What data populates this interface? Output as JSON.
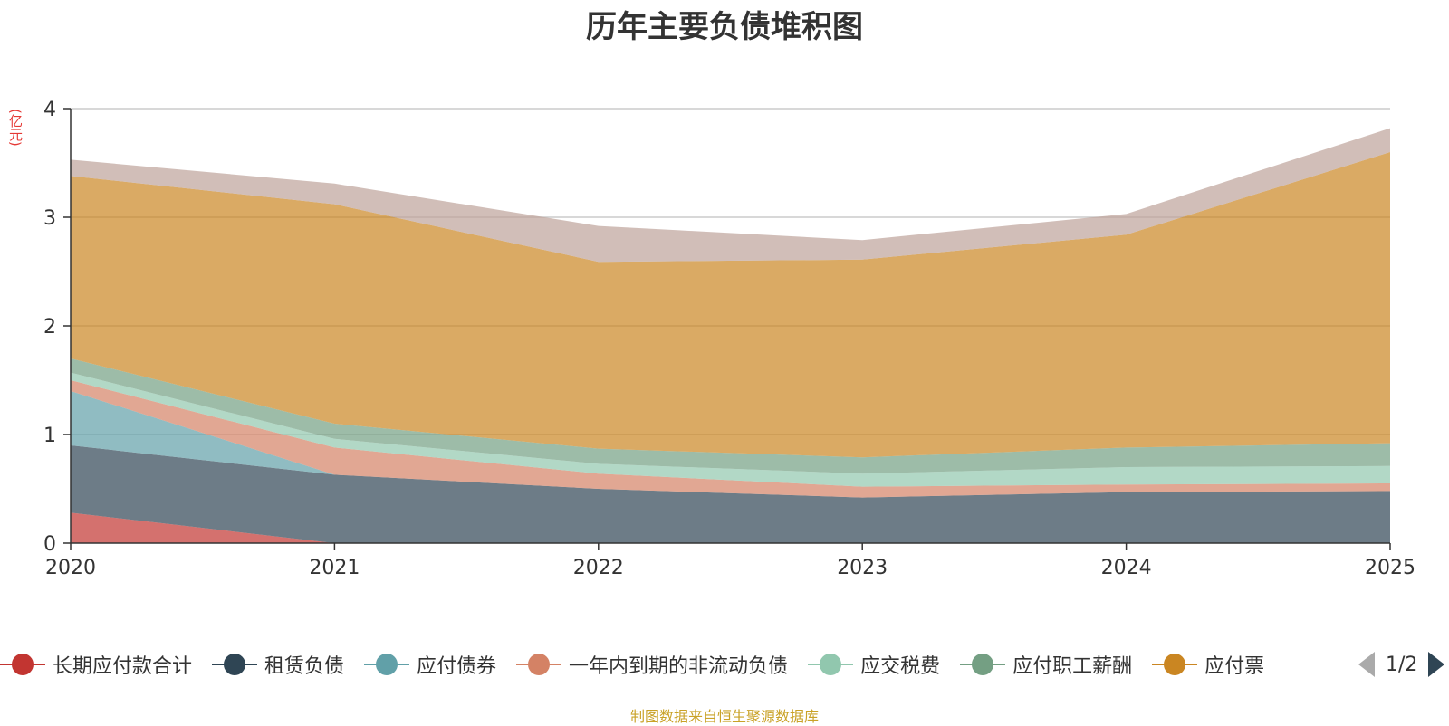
{
  "title": "历年主要负债堆积图",
  "unit_label": "(亿元)",
  "footer": "制图数据来自恒生聚源数据库",
  "legend_page": "1/2",
  "chart_data": {
    "type": "area",
    "stacked": true,
    "title": "历年主要负债堆积图",
    "ylabel": "(亿元)",
    "x": [
      "2020",
      "2021",
      "2022",
      "2023",
      "2024",
      "2025"
    ],
    "ylim": [
      0,
      4
    ],
    "yticks": [
      0,
      1,
      2,
      3,
      4
    ],
    "grid": true,
    "legend_position": "bottom",
    "series": [
      {
        "name": "长期应付款合计",
        "color": "#c23531",
        "values": [
          0.28,
          0.0,
          0.0,
          0.0,
          0.0,
          0.0
        ]
      },
      {
        "name": "租赁负债",
        "color": "#2f4554",
        "values": [
          0.62,
          0.63,
          0.5,
          0.42,
          0.47,
          0.48
        ]
      },
      {
        "name": "应付债券",
        "color": "#61a0a8",
        "values": [
          0.5,
          0.0,
          0.0,
          0.0,
          0.0,
          0.0
        ]
      },
      {
        "name": "一年内到期的非流动负债",
        "color": "#d48265",
        "values": [
          0.1,
          0.25,
          0.14,
          0.1,
          0.07,
          0.07
        ]
      },
      {
        "name": "应交税费",
        "color": "#91c7ae",
        "values": [
          0.07,
          0.08,
          0.09,
          0.12,
          0.16,
          0.16
        ]
      },
      {
        "name": "应付职工薪酬",
        "color": "#749f83",
        "values": [
          0.13,
          0.14,
          0.14,
          0.15,
          0.18,
          0.21
        ]
      },
      {
        "name": "应付票",
        "color": "#ca8622",
        "values": [
          1.68,
          2.02,
          1.72,
          1.82,
          1.96,
          2.68
        ]
      },
      {
        "color": "#bda29a",
        "values": [
          0.15,
          0.19,
          0.33,
          0.18,
          0.19,
          0.22
        ]
      }
    ]
  }
}
